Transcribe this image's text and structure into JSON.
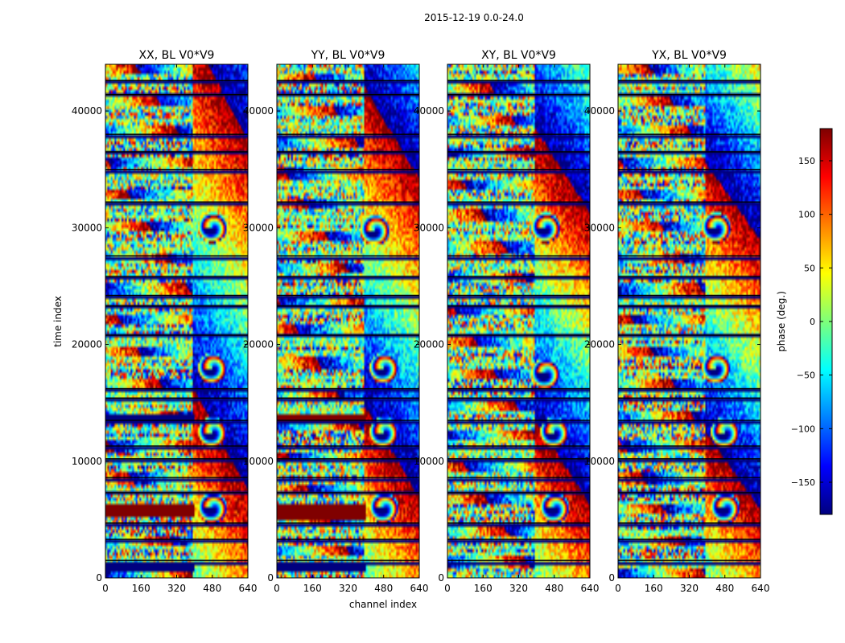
{
  "chart_data": {
    "type": "heatmap",
    "suptitle": "2015-12-19 0.0-24.0",
    "xlabel": "channel index",
    "ylabel": "time index",
    "xlim": [
      0,
      640
    ],
    "ylim": [
      0,
      44000
    ],
    "xticks": [
      0,
      160,
      320,
      480,
      640
    ],
    "yticks": [
      0,
      10000,
      20000,
      30000,
      40000
    ],
    "panels": [
      {
        "title": "XX, BL V0*V9",
        "fringe_centers": [
          {
            "channel": 480,
            "time": 30000
          },
          {
            "channel": 480,
            "time": 18000
          },
          {
            "channel": 480,
            "time": 12500
          },
          {
            "channel": 480,
            "time": 6000
          }
        ],
        "saturated_bands": [
          {
            "time_start": 13600,
            "time_end": 14100,
            "channel_end": 400,
            "phase": -180
          },
          {
            "time_start": 5200,
            "time_end": 6200,
            "channel_end": 400,
            "phase": 180
          },
          {
            "time_start": 600,
            "time_end": 1100,
            "channel_end": 400,
            "phase": -180
          }
        ]
      },
      {
        "title": "YY, BL V0*V9",
        "fringe_centers": [
          {
            "channel": 440,
            "time": 29800
          },
          {
            "channel": 480,
            "time": 18000
          },
          {
            "channel": 480,
            "time": 12500
          },
          {
            "channel": 480,
            "time": 6000
          }
        ],
        "saturated_bands": [
          {
            "time_start": 13300,
            "time_end": 14000,
            "channel_end": 400,
            "phase": 180
          },
          {
            "time_start": 5000,
            "time_end": 6300,
            "channel_end": 400,
            "phase": 180
          },
          {
            "time_start": 600,
            "time_end": 1100,
            "channel_end": 400,
            "phase": -180
          }
        ]
      },
      {
        "title": "XY, BL V0*V9",
        "fringe_centers": [
          {
            "channel": 440,
            "time": 30000
          },
          {
            "channel": 440,
            "time": 17500
          },
          {
            "channel": 480,
            "time": 12500
          },
          {
            "channel": 480,
            "time": 6000
          }
        ],
        "saturated_bands": []
      },
      {
        "title": "YX, BL V0*V9",
        "fringe_centers": [
          {
            "channel": 440,
            "time": 30000
          },
          {
            "channel": 440,
            "time": 18000
          },
          {
            "channel": 480,
            "time": 12500
          },
          {
            "channel": 480,
            "time": 6000
          }
        ],
        "saturated_bands": []
      }
    ],
    "colorbar": {
      "label": "phase (deg.)",
      "range": [
        -180,
        180
      ],
      "ticks": [
        -150,
        -100,
        -50,
        0,
        50,
        100,
        150
      ],
      "tick_labels": [
        "−150",
        "−100",
        "−50",
        "0",
        "50",
        "100",
        "150"
      ],
      "colormap": "jet",
      "colors": [
        "#00007f",
        "#0000ff",
        "#0080ff",
        "#00ffff",
        "#7dff7a",
        "#ffff00",
        "#ff8000",
        "#ff0000",
        "#7f0000"
      ]
    }
  }
}
